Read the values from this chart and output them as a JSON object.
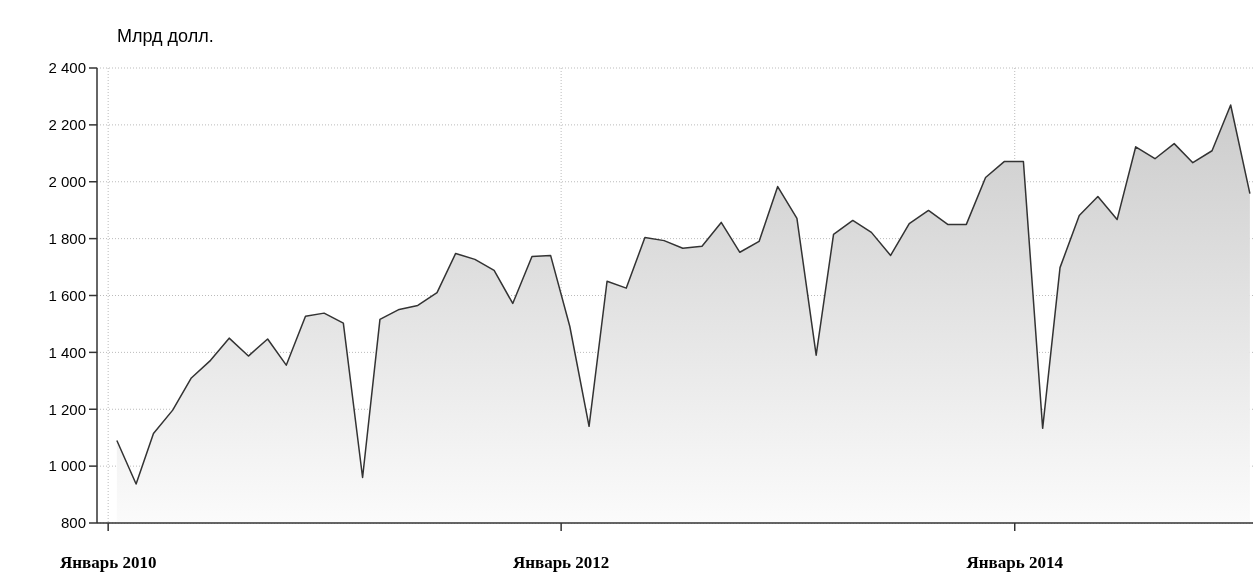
{
  "chart_data": {
    "type": "area",
    "ylabel": "Млрд долл.",
    "x": [
      "2010-01-15",
      "2010-02-15",
      "2010-03-15",
      "2010-04-15",
      "2010-05-15",
      "2010-06-15",
      "2010-07-15",
      "2010-08-15",
      "2010-09-15",
      "2010-10-15",
      "2010-11-15",
      "2010-12-15",
      "2011-01-15",
      "2011-02-15",
      "2011-03-15",
      "2011-04-15",
      "2011-05-15",
      "2011-06-15",
      "2011-07-15",
      "2011-08-15",
      "2011-09-15",
      "2011-10-15",
      "2011-11-15",
      "2011-12-15",
      "2012-01-15",
      "2012-02-15",
      "2012-03-15",
      "2012-04-15",
      "2012-05-15",
      "2012-06-15",
      "2012-07-15",
      "2012-08-15",
      "2012-09-15",
      "2012-10-15",
      "2012-11-15",
      "2012-12-15",
      "2013-01-15",
      "2013-02-15",
      "2013-03-15",
      "2013-04-15",
      "2013-05-15",
      "2013-06-15",
      "2013-07-15",
      "2013-08-15",
      "2013-09-15",
      "2013-10-15",
      "2013-11-15",
      "2013-12-15",
      "2014-01-15",
      "2014-02-15",
      "2014-03-15",
      "2014-04-15",
      "2014-05-15",
      "2014-06-15",
      "2014-07-15",
      "2014-08-15",
      "2014-09-15",
      "2014-10-15",
      "2014-11-15",
      "2014-12-15",
      "2015-01-15"
    ],
    "series": [
      {
        "color": "#333333",
        "values": [
          1090,
          937,
          1115,
          1197,
          1310,
          1372,
          1450,
          1387,
          1447,
          1355,
          1527,
          1538,
          1503,
          960,
          1516,
          1551,
          1565,
          1610,
          1748,
          1727,
          1688,
          1572,
          1737,
          1741,
          1491,
          1140,
          1650,
          1626,
          1804,
          1793,
          1766,
          1773,
          1857,
          1752,
          1790,
          1983,
          1871,
          1390,
          1815,
          1864,
          1822,
          1741,
          1853,
          1899,
          1850,
          1850,
          2015,
          2071,
          2071,
          1133,
          1698,
          1881,
          1948,
          1867,
          2123,
          2081,
          2134,
          2067,
          2109,
          2270,
          1958
        ]
      }
    ],
    "xlim": [
      "2009-12-14",
      "2015-01-20"
    ],
    "ylim": [
      800,
      2400
    ],
    "xticks": [
      {
        "value": "2010-01-01",
        "label": "Январь 2010"
      },
      {
        "value": "2012-01-01",
        "label": "Январь 2012"
      },
      {
        "value": "2014-01-01",
        "label": "Январь 2014"
      }
    ],
    "yticks": [
      {
        "value": 800,
        "label": "800"
      },
      {
        "value": 1000,
        "label": "1 000"
      },
      {
        "value": 1200,
        "label": "1 200"
      },
      {
        "value": 1400,
        "label": "1 400"
      },
      {
        "value": 1600,
        "label": "1 600"
      },
      {
        "value": 1800,
        "label": "1 800"
      },
      {
        "value": 2000,
        "label": "2 000"
      },
      {
        "value": 2200,
        "label": "2 200"
      },
      {
        "value": 2400,
        "label": "2 400"
      }
    ],
    "grid": true
  }
}
